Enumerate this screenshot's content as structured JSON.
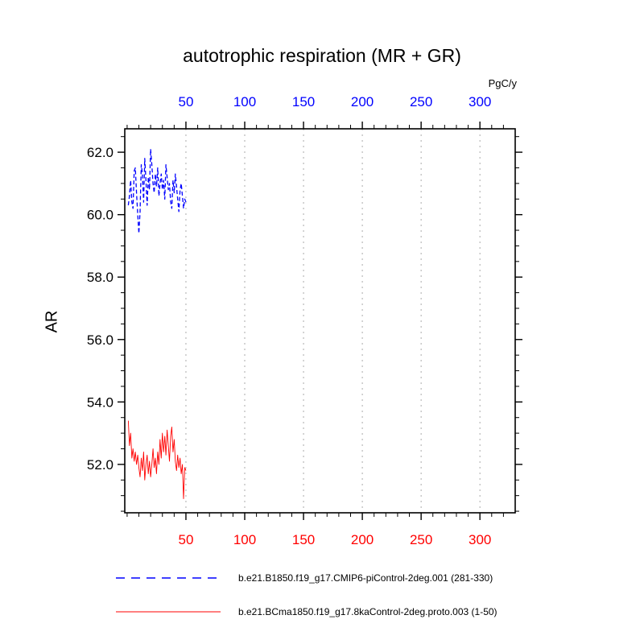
{
  "chart_data": {
    "type": "line",
    "title": "autotrophic respiration (MR + GR)",
    "ylabel": "AR",
    "xlabel": "",
    "top_axis_label": "PgC/y",
    "xlim": [
      -2,
      330
    ],
    "ylim": [
      50.45,
      62.75
    ],
    "xticks": [
      50,
      100,
      150,
      200,
      250,
      300
    ],
    "yticks": [
      52.0,
      54.0,
      56.0,
      58.0,
      60.0,
      62.0
    ],
    "x_minor_step": 10,
    "y_minor_step": 0.5,
    "grid": "vertical-dashed",
    "grid_color": "#aaaaaa",
    "frame_color": "#000000",
    "top_axis_color": "#0000ff",
    "bottom_axis_color": "#ff0000",
    "left_axis_color": "#000000",
    "legend_position": "bottom",
    "series": [
      {
        "name": "b.e21.B1850.f19_g17.CMIP6-piControl-2deg.001 (281-330)",
        "color": "#0000ff",
        "style": "dashed",
        "x": [
          1,
          2,
          3,
          4,
          5,
          6,
          7,
          8,
          9,
          10,
          11,
          12,
          13,
          14,
          15,
          16,
          17,
          18,
          19,
          20,
          21,
          22,
          23,
          24,
          25,
          26,
          27,
          28,
          29,
          30,
          31,
          32,
          33,
          34,
          35,
          36,
          37,
          38,
          39,
          40,
          41,
          42,
          43,
          44,
          45,
          46,
          47,
          48,
          49,
          50
        ],
        "values": [
          60.3,
          60.6,
          61.1,
          60.4,
          60.2,
          61.4,
          61.5,
          60.7,
          60.0,
          59.4,
          60.1,
          61.6,
          61.3,
          60.4,
          61.8,
          61.1,
          60.3,
          61.2,
          60.8,
          62.1,
          61.6,
          61.0,
          60.7,
          61.3,
          60.9,
          61.5,
          60.6,
          61.0,
          61.3,
          60.8,
          61.1,
          60.5,
          61.6,
          61.2,
          60.8,
          61.0,
          60.4,
          60.2,
          61.1,
          60.7,
          61.3,
          60.9,
          60.5,
          60.1,
          60.8,
          61.0,
          60.6,
          60.2,
          60.5,
          60.4
        ]
      },
      {
        "name": "b.e21.BCma1850.f19_g17.8kaControl-2deg.proto.003 (1-50)",
        "color": "#ff0000",
        "style": "solid",
        "x": [
          1,
          2,
          3,
          4,
          5,
          6,
          7,
          8,
          9,
          10,
          11,
          12,
          13,
          14,
          15,
          16,
          17,
          18,
          19,
          20,
          21,
          22,
          23,
          24,
          25,
          26,
          27,
          28,
          29,
          30,
          31,
          32,
          33,
          34,
          35,
          36,
          37,
          38,
          39,
          40,
          41,
          42,
          43,
          44,
          45,
          46,
          47,
          48,
          49,
          50
        ],
        "values": [
          53.4,
          52.6,
          53.0,
          52.2,
          52.5,
          52.1,
          52.4,
          52.0,
          52.3,
          51.9,
          51.6,
          52.2,
          51.8,
          52.4,
          51.5,
          52.0,
          52.3,
          51.7,
          52.1,
          51.6,
          52.0,
          52.5,
          51.9,
          52.2,
          51.7,
          52.4,
          52.0,
          52.8,
          52.2,
          53.0,
          52.4,
          52.9,
          52.3,
          53.1,
          52.6,
          52.1,
          52.9,
          53.2,
          52.4,
          52.8,
          52.1,
          51.8,
          52.3,
          51.9,
          52.2,
          51.7,
          52.0,
          50.9,
          51.9,
          51.8
        ]
      }
    ]
  }
}
